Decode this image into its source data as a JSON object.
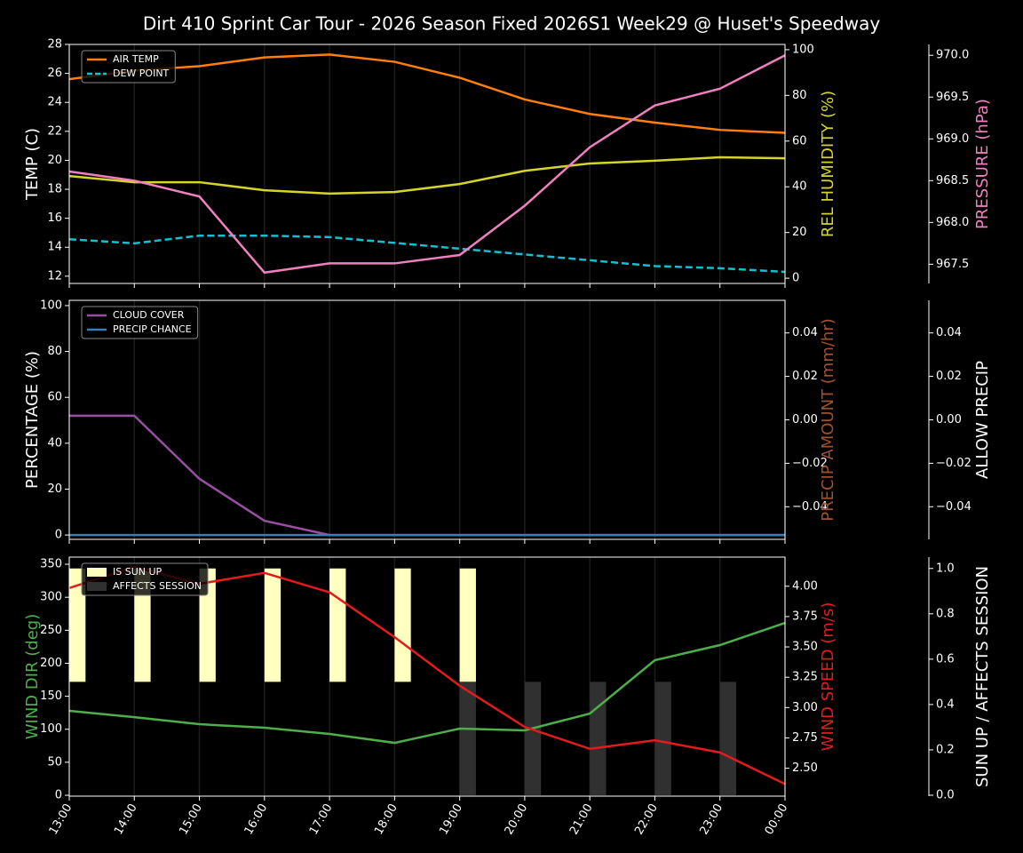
{
  "chart_data": [
    {
      "type": "line",
      "title": "Dirt 410 Sprint Car Tour - 2026 Season Fixed 2026S1 Week29 @ Huset's Speedway",
      "grid": true,
      "legend": "upper left",
      "ylabel": "TEMP (C)",
      "ylabel_color": "#ffffff",
      "ylim": [
        11.5,
        28
      ],
      "yticks": [
        12,
        14,
        16,
        18,
        20,
        22,
        24,
        26,
        28
      ],
      "y2label": "REL HUMIDITY (%)",
      "y2label_color": "#d4d42a",
      "y2lim": [
        -2.3,
        102.3
      ],
      "y2ticks": [
        0,
        20,
        40,
        60,
        80,
        100
      ],
      "y3label": "PRESSURE (hPa)",
      "y3label_color": "#f080c0",
      "y3lim": [
        967.27,
        970.13
      ],
      "y3ticks": [
        967.5,
        {
          "value": 968.0,
          "label": "968.0"
        },
        968.5,
        {
          "value": 969.0,
          "label": "969.0"
        },
        969.5,
        {
          "value": 970.0,
          "label": "970.0"
        }
      ],
      "series": [
        {
          "name": "AIR TEMP",
          "color": "#ff7f0e",
          "axis": "y",
          "legend": true,
          "values": [
            25.6,
            26.2,
            26.5,
            27.1,
            27.3,
            26.8,
            25.7,
            24.2,
            23.2,
            22.6,
            22.1,
            21.9
          ]
        },
        {
          "name": "DEW POINT",
          "color": "#17becf",
          "axis": "y",
          "legend": true,
          "linestyle": "dashed",
          "values": [
            14.55,
            14.27,
            14.8,
            14.8,
            14.7,
            14.3,
            13.9,
            13.5,
            13.1,
            12.7,
            12.55,
            12.3
          ]
        },
        {
          "color": "#d4d42a",
          "axis": "y2",
          "values": [
            44.7,
            42,
            42,
            38.5,
            37,
            37.7,
            41.2,
            47,
            50.2,
            51.4,
            52.9,
            52.5
          ]
        },
        {
          "color": "#f080c0",
          "axis": "y3",
          "values": [
            968.61,
            968.5,
            968.31,
            967.4,
            967.51,
            967.51,
            967.61,
            968.2,
            968.9,
            969.4,
            969.6,
            970.0
          ]
        }
      ]
    },
    {
      "type": "line",
      "grid": true,
      "legend": "upper left",
      "ylabel": "PERCENTAGE (%)",
      "ylabel_color": "#ffffff",
      "ylim": [
        -1.9,
        102.3
      ],
      "yticks": [
        0,
        20,
        40,
        60,
        80,
        100
      ],
      "y2label": "PRECIP AMOUNT (mm/hr)",
      "y2label_color": "#a0522d",
      "y2lim": [
        -0.055,
        0.055
      ],
      "y2ticks": [
        {
          "value": -0.04,
          "label": "−0.04"
        },
        {
          "value": -0.02,
          "label": "−0.02"
        },
        {
          "value": 0,
          "label": "0.00"
        },
        0.02,
        0.04
      ],
      "y3label": "ALLOW PRECIP",
      "y3label_color": "#ffffff",
      "y3lim": [
        -0.055,
        0.055
      ],
      "y3ticks": [
        {
          "value": -0.04,
          "label": "−0.04"
        },
        {
          "value": -0.02,
          "label": "−0.02"
        },
        {
          "value": 0,
          "label": "0.00"
        },
        0.02,
        0.04
      ],
      "series": [
        {
          "name": "CLOUD COVER",
          "color": "#984ea3",
          "axis": "y",
          "legend": true,
          "values": [
            52,
            52,
            24.5,
            6.2,
            0,
            0,
            0,
            0,
            0,
            0,
            0,
            0
          ]
        },
        {
          "name": "PRECIP CHANCE",
          "color": "#377eb8",
          "axis": "y",
          "legend": true,
          "values": [
            0,
            0,
            0,
            0,
            0,
            0,
            0,
            0,
            0,
            0,
            0,
            0
          ]
        }
      ]
    },
    {
      "type": "line",
      "grid": true,
      "legend": "upper left",
      "categories": [
        "13:00",
        "14:00",
        "15:00",
        "16:00",
        "17:00",
        "18:00",
        "19:00",
        "20:00",
        "21:00",
        "22:00",
        "23:00",
        "00:00"
      ],
      "ylabel": "WIND DIR (deg)",
      "ylabel_color": "#4daf4a",
      "ylim": [
        -1.3,
        360.8
      ],
      "yticks": [
        0,
        50,
        100,
        150,
        200,
        250,
        300,
        350
      ],
      "y2label": "WIND SPEED (m/s)",
      "y2label_color": "#e41a1c",
      "y2lim": [
        2.27,
        4.24
      ],
      "y2ticks": [
        {
          "value": 2.5,
          "label": "2.50"
        },
        2.75,
        {
          "value": 3,
          "label": "3.00"
        },
        3.25,
        {
          "value": 3.5,
          "label": "3.50"
        },
        3.75,
        {
          "value": 4,
          "label": "4.00"
        }
      ],
      "y3label": "SUN UP / AFFECTS SESSION",
      "y3label_color": "#ffffff",
      "y3lim": [
        -0.004,
        1.05
      ],
      "y3ticks": [
        {
          "value": 0,
          "label": "0.0"
        },
        0.2,
        0.4,
        0.6,
        0.8,
        {
          "value": 1,
          "label": "1.0"
        }
      ],
      "series": [
        {
          "name": "IS SUN UP",
          "type": "bar",
          "color": "#ffffc0",
          "axis": "y3",
          "legend": true,
          "bottom": 0.5,
          "values": [
            0.5,
            0.5,
            0.5,
            0.5,
            0.5,
            0.5,
            0.5,
            0,
            0,
            0,
            0,
            0
          ]
        },
        {
          "name": "AFFECTS SESSION",
          "type": "bar",
          "color": "#303030",
          "axis": "y3",
          "legend": true,
          "values": [
            0,
            0,
            0,
            0,
            0,
            0,
            0.5,
            0.5,
            0.5,
            0.5,
            0.5,
            0
          ]
        },
        {
          "color": "#4daf4a",
          "axis": "y",
          "values": [
            127.9,
            118.4,
            107.7,
            102.3,
            92.9,
            79.4,
            101,
            98.3,
            123.8,
            204.6,
            227.5,
            261.1
          ]
        },
        {
          "color": "#e41a1c",
          "axis": "y2",
          "values": [
            3.985,
            4.16,
            4.02,
            4.11,
            3.95,
            3.58,
            3.18,
            2.84,
            2.66,
            2.73,
            2.63,
            2.37
          ]
        }
      ]
    }
  ]
}
